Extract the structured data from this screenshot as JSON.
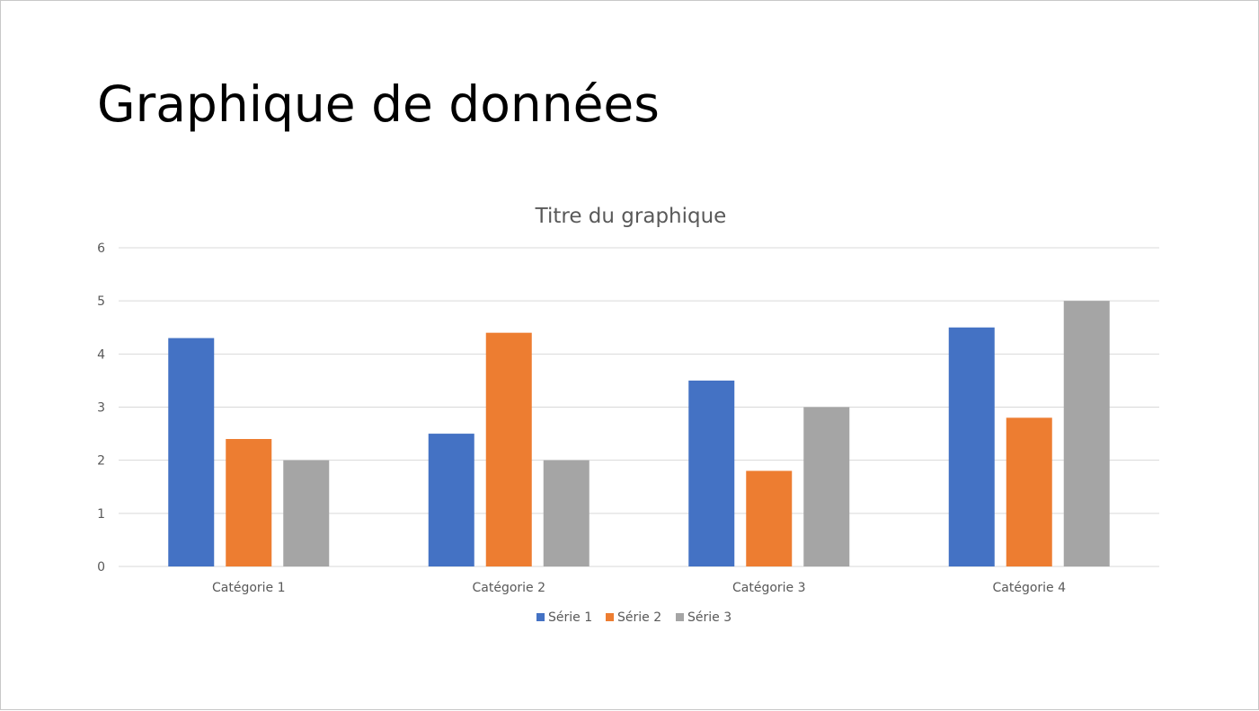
{
  "slide": {
    "title": "Graphique de données"
  },
  "chart_data": {
    "type": "bar",
    "title": "Titre du graphique",
    "xlabel": "",
    "ylabel": "",
    "categories": [
      "Catégorie 1",
      "Catégorie 2",
      "Catégorie 3",
      "Catégorie 4"
    ],
    "series": [
      {
        "name": "Série 1",
        "color": "#4472C4",
        "values": [
          4.3,
          2.5,
          3.5,
          4.5
        ]
      },
      {
        "name": "Série 2",
        "color": "#ED7D31",
        "values": [
          2.4,
          4.4,
          1.8,
          2.8
        ]
      },
      {
        "name": "Série 3",
        "color": "#A5A5A5",
        "values": [
          2,
          2,
          3,
          5
        ]
      }
    ],
    "ylim": [
      0,
      6
    ],
    "yticks": [
      "0",
      "1",
      "2",
      "3",
      "4",
      "5",
      "6"
    ],
    "grid": true,
    "legend_position": "bottom"
  }
}
